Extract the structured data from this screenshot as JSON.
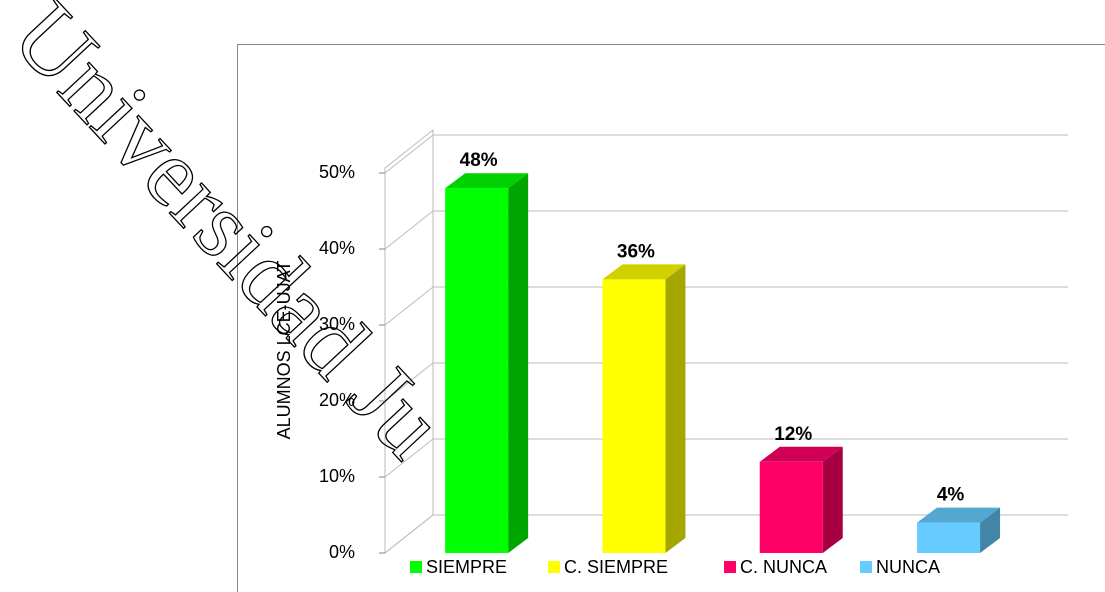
{
  "watermark": "Universidad Ju",
  "chart_data": {
    "type": "bar3d",
    "y_label": "ALUMNOS LCE-UJAT",
    "categories": [
      "SIEMPRE",
      "C. SIEMPRE",
      "C. NUNCA",
      "NUNCA"
    ],
    "values": [
      48,
      36,
      12,
      4
    ],
    "value_labels": [
      "48%",
      "36%",
      "12%",
      "4%"
    ],
    "colors": [
      "#00ff00",
      "#ffff00",
      "#ff0066",
      "#66ccff"
    ],
    "ylim": [
      0,
      50
    ],
    "yticks": [
      {
        "value": 0,
        "label": "0%"
      },
      {
        "value": 10,
        "label": "10%"
      },
      {
        "value": 20,
        "label": "20%"
      },
      {
        "value": 30,
        "label": "30%"
      },
      {
        "value": 40,
        "label": "40%"
      },
      {
        "value": 50,
        "label": "50%"
      }
    ],
    "grid": true,
    "legend": "bottom"
  }
}
